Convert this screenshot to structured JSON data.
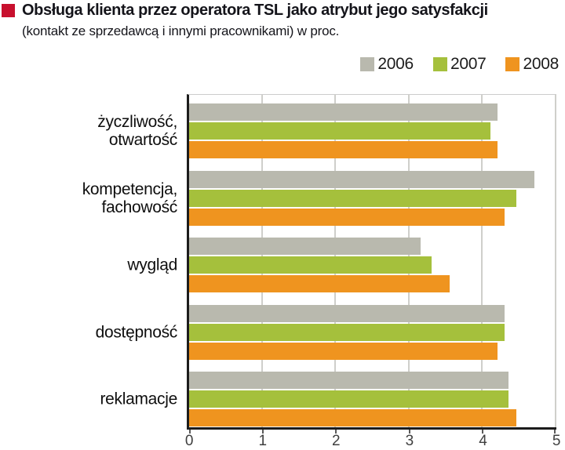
{
  "chart_data": {
    "type": "bar",
    "orientation": "horizontal",
    "title": "Obsługa klienta przez operatora TSL jako atrybut jego satysfakcji",
    "subtitle": "(kontakt ze sprzedawcą i innymi pracownikami) w proc.",
    "title_marker_color": "#c8102e",
    "categories": [
      [
        "życzliwość,",
        "otwartość"
      ],
      [
        "kompetencja,",
        "fachowość"
      ],
      [
        "wygląd"
      ],
      [
        "dostępność"
      ],
      [
        "reklamacje"
      ]
    ],
    "series": [
      {
        "name": "2006",
        "color": "#b9b9ae",
        "values": [
          4.2,
          4.7,
          3.15,
          4.3,
          4.35
        ]
      },
      {
        "name": "2007",
        "color": "#a5c03c",
        "values": [
          4.1,
          4.45,
          3.3,
          4.3,
          4.35
        ]
      },
      {
        "name": "2008",
        "color": "#ef941f",
        "values": [
          4.2,
          4.3,
          3.55,
          4.2,
          4.45
        ]
      }
    ],
    "xlim": [
      0,
      5
    ],
    "x_ticks": [
      0,
      1,
      2,
      3,
      4,
      5
    ],
    "grid": "vertical",
    "legend_position": "top-right",
    "axis_color": "#1c1c1c",
    "gridline_color": "#cfcfcb"
  }
}
